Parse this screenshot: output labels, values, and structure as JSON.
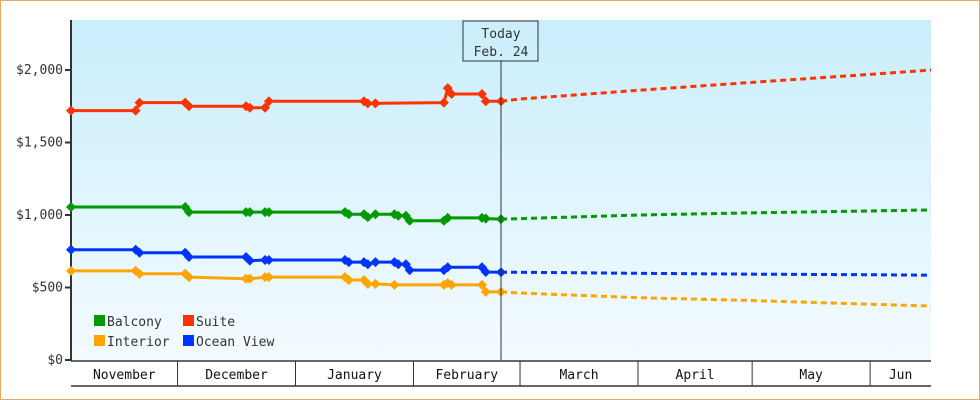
{
  "chart_data": {
    "type": "line",
    "title": "",
    "xlabel": "",
    "ylabel": "",
    "ylim": [
      0,
      2345
    ],
    "xlim": [
      "Nov 3",
      "Jun 17"
    ],
    "grid": false,
    "legend_position": "bottom-left",
    "background": [
      "#c9eefc",
      "#f4fbff"
    ],
    "y_ticks": [
      {
        "value": 0,
        "label": "$0"
      },
      {
        "value": 500,
        "label": "$500"
      },
      {
        "value": 1000,
        "label": "$1,000"
      },
      {
        "value": 1500,
        "label": "$1,500"
      },
      {
        "value": 2000,
        "label": "$2,000"
      }
    ],
    "x_months": [
      {
        "label": "November",
        "start": "Nov 3",
        "end": "Dec 1"
      },
      {
        "label": "December",
        "start": "Dec 1",
        "end": "Jan 1"
      },
      {
        "label": "January",
        "start": "Jan 1",
        "end": "Feb 1"
      },
      {
        "label": "February",
        "start": "Feb 1",
        "end": "Mar 1"
      },
      {
        "label": "March",
        "start": "Mar 1",
        "end": "Apr 1"
      },
      {
        "label": "April",
        "start": "Apr 1",
        "end": "May 1"
      },
      {
        "label": "May",
        "start": "May 1",
        "end": "Jun 1"
      },
      {
        "label": "Jun",
        "start": "Jun 1",
        "end": "Jun 17"
      }
    ],
    "today": {
      "label": "Today",
      "date_label": "Feb. 24",
      "date": "Feb 24"
    },
    "series": [
      {
        "name": "Balcony",
        "color": "#009900",
        "values": [
          [
            "Nov 3",
            1055
          ],
          [
            "Dec 3",
            1055
          ],
          [
            "Dec 4",
            1020
          ],
          [
            "Dec 19",
            1020
          ],
          [
            "Dec 20",
            1020
          ],
          [
            "Dec 24",
            1020
          ],
          [
            "Dec 25",
            1020
          ],
          [
            "Jan 14",
            1020
          ],
          [
            "Jan 15",
            1005
          ],
          [
            "Jan 19",
            1005
          ],
          [
            "Jan 20",
            985
          ],
          [
            "Jan 22",
            1005
          ],
          [
            "Jan 27",
            1005
          ],
          [
            "Jan 28",
            995
          ],
          [
            "Jan 30",
            995
          ],
          [
            "Jan 31",
            960
          ],
          [
            "Feb 9",
            960
          ],
          [
            "Feb 10",
            980
          ],
          [
            "Feb 19",
            980
          ],
          [
            "Feb 20",
            975
          ],
          [
            "Feb 24",
            972
          ]
        ],
        "forecast": [
          [
            "Feb 24",
            972
          ],
          [
            "Mar 1",
            975
          ],
          [
            "Apr 1",
            1000
          ],
          [
            "May 1",
            1015
          ],
          [
            "Jun 1",
            1028
          ],
          [
            "Jun 17",
            1035
          ]
        ]
      },
      {
        "name": "Suite",
        "color": "#ff3300",
        "values": [
          [
            "Nov 3",
            1720
          ],
          [
            "Nov 20",
            1720
          ],
          [
            "Nov 21",
            1775
          ],
          [
            "Dec 3",
            1775
          ],
          [
            "Dec 4",
            1750
          ],
          [
            "Dec 19",
            1750
          ],
          [
            "Dec 20",
            1740
          ],
          [
            "Dec 24",
            1740
          ],
          [
            "Dec 25",
            1785
          ],
          [
            "Jan 19",
            1785
          ],
          [
            "Jan 20",
            1770
          ],
          [
            "Jan 22",
            1770
          ],
          [
            "Feb 9",
            1775
          ],
          [
            "Feb 10",
            1875
          ],
          [
            "Feb 11",
            1835
          ],
          [
            "Feb 19",
            1835
          ],
          [
            "Feb 20",
            1785
          ],
          [
            "Feb 24",
            1785
          ]
        ],
        "forecast": [
          [
            "Feb 24",
            1785
          ],
          [
            "Mar 1",
            1800
          ],
          [
            "Apr 1",
            1860
          ],
          [
            "May 1",
            1915
          ],
          [
            "Jun 1",
            1970
          ],
          [
            "Jun 17",
            2000
          ]
        ]
      },
      {
        "name": "Interior",
        "color": "#ffa500",
        "values": [
          [
            "Nov 3",
            615
          ],
          [
            "Nov 20",
            615
          ],
          [
            "Nov 21",
            595
          ],
          [
            "Dec 3",
            595
          ],
          [
            "Dec 4",
            572
          ],
          [
            "Dec 19",
            560
          ],
          [
            "Dec 20",
            560
          ],
          [
            "Dec 24",
            572
          ],
          [
            "Dec 25",
            572
          ],
          [
            "Jan 14",
            572
          ],
          [
            "Jan 15",
            552
          ],
          [
            "Jan 19",
            552
          ],
          [
            "Jan 20",
            525
          ],
          [
            "Jan 22",
            525
          ],
          [
            "Jan 27",
            518
          ],
          [
            "Feb 9",
            518
          ],
          [
            "Feb 10",
            530
          ],
          [
            "Feb 11",
            518
          ],
          [
            "Feb 19",
            518
          ],
          [
            "Feb 20",
            470
          ],
          [
            "Feb 24",
            470
          ]
        ],
        "forecast": [
          [
            "Feb 24",
            470
          ],
          [
            "Mar 1",
            462
          ],
          [
            "Apr 1",
            430
          ],
          [
            "May 1",
            410
          ],
          [
            "Jun 1",
            385
          ],
          [
            "Jun 17",
            372
          ]
        ]
      },
      {
        "name": "Ocean View",
        "color": "#0033ff",
        "values": [
          [
            "Nov 3",
            760
          ],
          [
            "Nov 20",
            760
          ],
          [
            "Nov 21",
            740
          ],
          [
            "Dec 3",
            740
          ],
          [
            "Dec 4",
            710
          ],
          [
            "Dec 19",
            710
          ],
          [
            "Dec 20",
            685
          ],
          [
            "Dec 24",
            690
          ],
          [
            "Dec 25",
            690
          ],
          [
            "Jan 14",
            690
          ],
          [
            "Jan 15",
            675
          ],
          [
            "Jan 19",
            675
          ],
          [
            "Jan 20",
            660
          ],
          [
            "Jan 22",
            675
          ],
          [
            "Jan 27",
            675
          ],
          [
            "Jan 28",
            660
          ],
          [
            "Jan 30",
            660
          ],
          [
            "Jan 31",
            620
          ],
          [
            "Feb 9",
            620
          ],
          [
            "Feb 10",
            640
          ],
          [
            "Feb 19",
            640
          ],
          [
            "Feb 20",
            607
          ],
          [
            "Feb 24",
            605
          ]
        ],
        "forecast": [
          [
            "Feb 24",
            605
          ],
          [
            "Mar 1",
            605
          ],
          [
            "Apr 1",
            598
          ],
          [
            "May 1",
            592
          ],
          [
            "Jun 1",
            588
          ],
          [
            "Jun 17",
            585
          ]
        ]
      }
    ]
  }
}
